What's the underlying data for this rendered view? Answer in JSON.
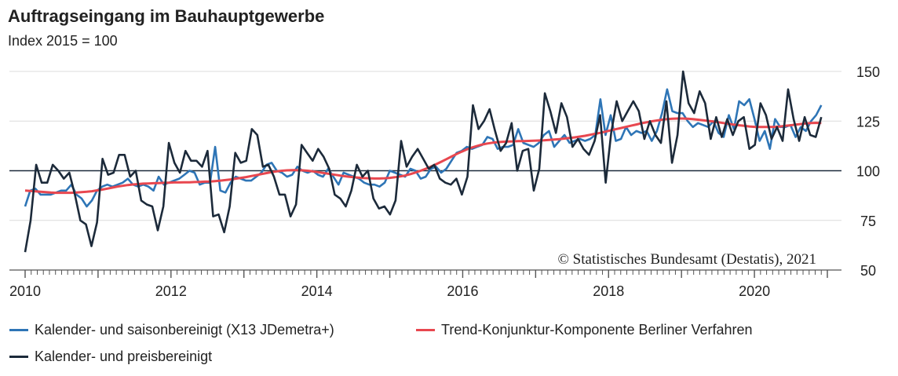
{
  "chart_data": {
    "type": "line",
    "title": "Auftragseingang im Bauhauptgewerbe",
    "subtitle": "Index 2015 = 100",
    "xlabel": "",
    "ylabel": "",
    "ylim": [
      50,
      150
    ],
    "xlim": [
      2010,
      2021
    ],
    "y_ticks": [
      "50",
      "75",
      "100",
      "125",
      "150"
    ],
    "x_ticks": [
      "2010",
      "2012",
      "2014",
      "2016",
      "2018",
      "2020"
    ],
    "reference_line": 100,
    "grid": true,
    "legend_position": "bottom-left",
    "copyright": "© Statistisches Bundesamt (Destatis), 2021",
    "series": [
      {
        "name": "Kalender- und saisonbereinigt (X13 JDemetra+)",
        "color": "#2e75b6",
        "values": [
          82,
          90,
          91,
          88,
          88,
          88,
          89,
          90,
          90,
          93,
          88,
          86,
          82,
          85,
          90,
          92,
          93,
          92,
          93,
          94,
          96,
          93,
          92,
          93,
          92,
          90,
          97,
          93,
          94,
          95,
          96,
          98,
          100,
          99,
          93,
          94,
          94,
          112,
          90,
          89,
          94,
          97,
          96,
          95,
          95,
          97,
          99,
          103,
          104,
          100,
          99,
          97,
          98,
          102,
          100,
          99,
          100,
          98,
          97,
          101,
          97,
          93,
          99,
          98,
          97,
          96,
          94,
          93,
          93,
          92,
          94,
          100,
          99,
          98,
          97,
          101,
          100,
          96,
          97,
          101,
          102,
          99,
          101,
          105,
          109,
          110,
          112,
          111,
          112,
          113,
          117,
          116,
          111,
          112,
          112,
          113,
          121,
          114,
          113,
          112,
          114,
          118,
          120,
          112,
          115,
          118,
          114,
          115,
          116,
          115,
          116,
          118,
          136,
          118,
          128,
          115,
          116,
          122,
          118,
          120,
          119,
          120,
          115,
          120,
          129,
          141,
          130,
          129,
          129,
          125,
          122,
          124,
          123,
          122,
          125,
          119,
          117,
          128,
          121,
          135,
          133,
          136,
          126,
          115,
          120,
          111,
          126,
          122,
          122,
          123,
          117,
          122,
          120,
          125,
          128,
          133
        ]
      },
      {
        "name": "Trend-Konjunktur-Komponente Berliner Verfahren",
        "color": "#e8474f",
        "values": [
          90,
          89.8,
          89.6,
          89.4,
          89.2,
          89.0,
          88.9,
          88.9,
          88.9,
          88.9,
          89.0,
          89.2,
          89.4,
          89.7,
          90.1,
          90.5,
          91.0,
          91.5,
          92.0,
          92.4,
          92.8,
          93.1,
          93.3,
          93.5,
          93.6,
          93.7,
          93.8,
          93.9,
          94.0,
          94.1,
          94.1,
          94.2,
          94.2,
          94.3,
          94.4,
          94.5,
          94.6,
          94.8,
          95.0,
          95.3,
          95.6,
          96.0,
          96.4,
          96.8,
          97.3,
          97.8,
          98.3,
          98.8,
          99.3,
          99.7,
          100.0,
          100.2,
          100.3,
          100.3,
          100.2,
          100.0,
          99.7,
          99.3,
          98.9,
          98.5,
          98.1,
          97.7,
          97.3,
          97.0,
          96.7,
          96.5,
          96.3,
          96.2,
          96.1,
          96.1,
          96.2,
          96.4,
          96.7,
          97.1,
          97.6,
          98.3,
          99.1,
          100.0,
          101.0,
          102.1,
          103.3,
          104.5,
          105.8,
          107.1,
          108.4,
          109.6,
          110.7,
          111.7,
          112.5,
          113.2,
          113.7,
          114.1,
          114.4,
          114.6,
          114.7,
          114.8,
          114.9,
          114.9,
          115.0,
          115.1,
          115.2,
          115.3,
          115.5,
          115.7,
          115.9,
          116.2,
          116.5,
          116.8,
          117.2,
          117.6,
          118.1,
          118.6,
          119.1,
          119.7,
          120.3,
          120.9,
          121.5,
          122.1,
          122.7,
          123.3,
          123.9,
          124.4,
          124.9,
          125.3,
          125.7,
          126.0,
          126.2,
          126.3,
          126.3,
          126.2,
          126.0,
          125.7,
          125.4,
          125.1,
          124.8,
          124.4,
          124.0,
          123.6,
          123.2,
          122.9,
          122.6,
          122.3,
          122.1,
          122.0,
          122.0,
          122.0,
          122.1,
          122.3,
          122.6,
          122.9,
          123.2,
          123.5,
          123.8,
          124.0,
          124.1,
          124.0
        ]
      },
      {
        "name": "Kalender- und preisbereinigt",
        "color": "#1c2a3a",
        "values": [
          59,
          75,
          103,
          94,
          94,
          103,
          100,
          96,
          99,
          88,
          75,
          73,
          62,
          74,
          106,
          98,
          99,
          108,
          108,
          97,
          100,
          85,
          83,
          82,
          70,
          82,
          114,
          104,
          99,
          110,
          105,
          105,
          102,
          110,
          77,
          78,
          69,
          82,
          109,
          104,
          105,
          121,
          118,
          102,
          103,
          97,
          88,
          88,
          77,
          83,
          113,
          109,
          105,
          111,
          107,
          101,
          88,
          86,
          82,
          90,
          103,
          97,
          100,
          86,
          81,
          82,
          78,
          85,
          115,
          102,
          107,
          111,
          106,
          101,
          103,
          96,
          94,
          93,
          96,
          88,
          97,
          133,
          121,
          125,
          131,
          120,
          110,
          114,
          124,
          100,
          110,
          111,
          90,
          101,
          139,
          130,
          119,
          134,
          127,
          112,
          116,
          111,
          108,
          115,
          128,
          94,
          119,
          135,
          125,
          130,
          135,
          130,
          116,
          125,
          118,
          114,
          135,
          104,
          118,
          150,
          134,
          129,
          140,
          134,
          116,
          127,
          117,
          126,
          118,
          125,
          127,
          111,
          113,
          134,
          128,
          116,
          122,
          115,
          141,
          126,
          115,
          127,
          118,
          117,
          127
        ]
      }
    ]
  }
}
